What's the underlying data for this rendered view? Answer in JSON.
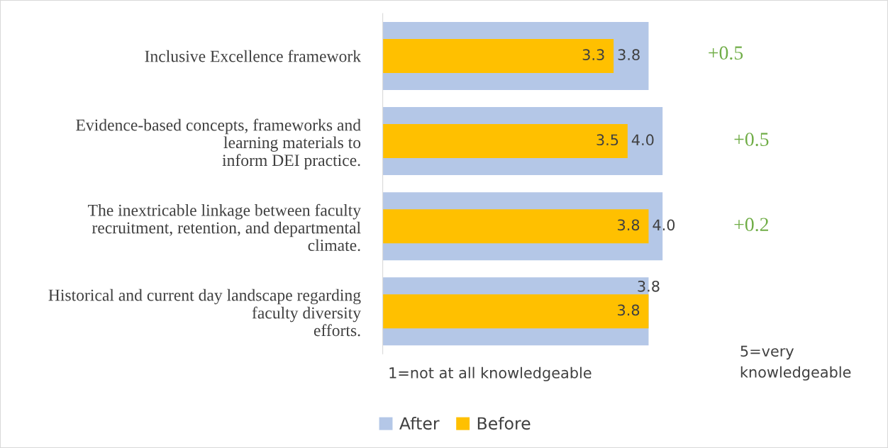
{
  "chart_data": {
    "type": "bar",
    "orientation": "horizontal",
    "data_labels": true,
    "legend": "bottom",
    "grid": false,
    "categories": [
      "Inclusive Excellence framework",
      "Evidence-based concepts, frameworks and\nlearning materials to\ninform DEI practice.",
      "The inextricable linkage between faculty\nrecruitment, retention, and departmental\nclimate.",
      "Historical and current day landscape regarding\nfaculty diversity\nefforts."
    ],
    "series": [
      {
        "name": "After",
        "color": "#b4c7e7",
        "values": [
          3.8,
          4.0,
          4.0,
          3.8
        ],
        "value_labels": [
          "3.8",
          "4.0",
          "4.0",
          "3.8"
        ]
      },
      {
        "name": "Before",
        "color": "#ffc000",
        "values": [
          3.3,
          3.5,
          3.8,
          3.8
        ],
        "value_labels": [
          "3.3",
          "3.5",
          "3.8",
          "3.8"
        ]
      }
    ],
    "annotations": [
      "+0.5",
      "+0.5",
      "+0.2",
      "1=not at all knowledgeable",
      "5=very\nknowledgeable"
    ]
  }
}
